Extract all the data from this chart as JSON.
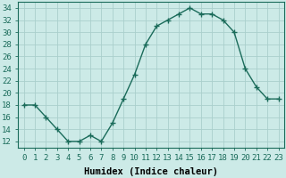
{
  "x": [
    0,
    1,
    2,
    3,
    4,
    5,
    6,
    7,
    8,
    9,
    10,
    11,
    12,
    13,
    14,
    15,
    16,
    17,
    18,
    19,
    20,
    21,
    22,
    23
  ],
  "y": [
    18,
    18,
    16,
    14,
    12,
    12,
    13,
    12,
    15,
    19,
    23,
    28,
    31,
    32,
    33,
    34,
    33,
    33,
    32,
    30,
    24,
    21,
    19,
    19
  ],
  "line_color": "#1a6b5a",
  "marker": "+",
  "marker_size": 4,
  "marker_lw": 1.0,
  "bg_color": "#cceae7",
  "grid_color": "#aacfcc",
  "xlabel": "Humidex (Indice chaleur)",
  "xlim": [
    -0.5,
    23.5
  ],
  "ylim": [
    11,
    35
  ],
  "yticks": [
    12,
    14,
    16,
    18,
    20,
    22,
    24,
    26,
    28,
    30,
    32,
    34
  ],
  "xtick_labels": [
    "0",
    "1",
    "2",
    "3",
    "4",
    "5",
    "6",
    "7",
    "8",
    "9",
    "10",
    "11",
    "12",
    "13",
    "14",
    "15",
    "16",
    "17",
    "18",
    "19",
    "20",
    "21",
    "22",
    "23"
  ],
  "tick_fontsize": 6.5,
  "label_fontsize": 7.5,
  "line_width": 1.0
}
